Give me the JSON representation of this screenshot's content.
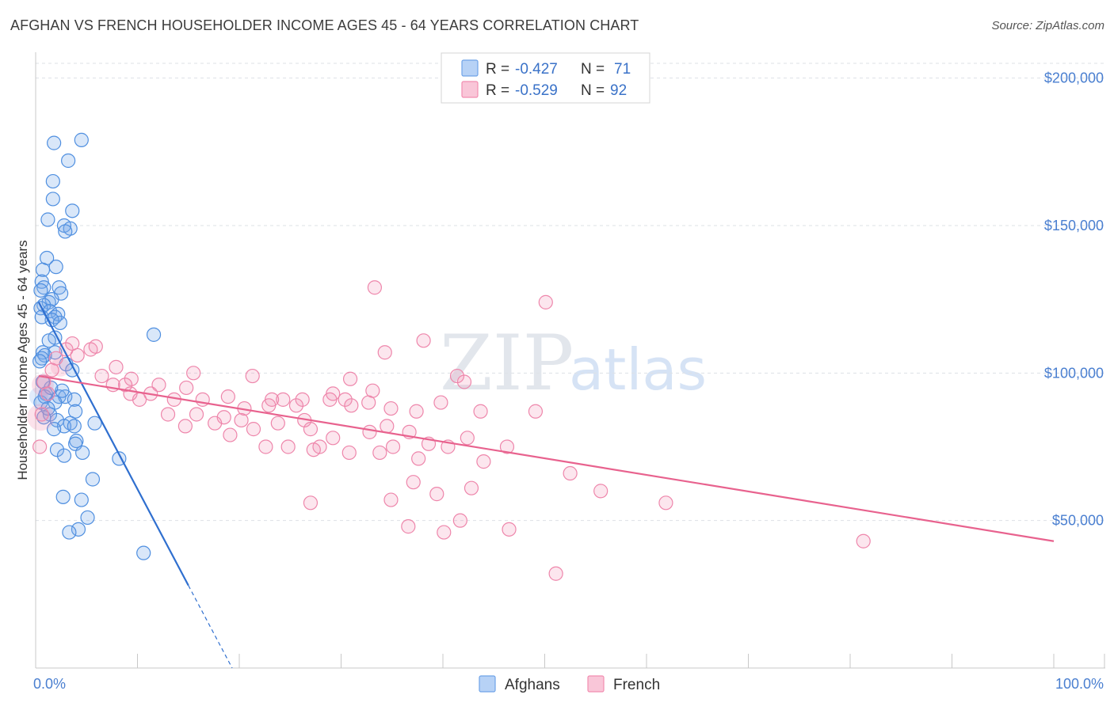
{
  "title": "AFGHAN VS FRENCH HOUSEHOLDER INCOME AGES 45 - 64 YEARS CORRELATION CHART",
  "source": "Source: ZipAtlas.com",
  "watermark": {
    "zip": "ZIP",
    "atlas": "atlas"
  },
  "colors": {
    "afghan": "#6fa3e8",
    "afghan_line": "#2f6fcf",
    "french": "#f28db0",
    "french_line": "#e8628e",
    "axis_text": "#4a7fd0"
  },
  "legend": {
    "rows": [
      {
        "r_label": "R = ",
        "r_value": "-0.427",
        "n_label": "N = ",
        "n_value": "71"
      },
      {
        "r_label": "R = ",
        "r_value": "-0.529",
        "n_label": "N = ",
        "n_value": "92"
      }
    ]
  },
  "chart_data": {
    "type": "scatter",
    "title": "AFGHAN VS FRENCH HOUSEHOLDER INCOME AGES 45 - 64 YEARS CORRELATION CHART",
    "xlabel": "",
    "ylabel": "Householder Income Ages 45 - 64 years",
    "xlim": [
      0,
      100
    ],
    "ylim": [
      0,
      205000
    ],
    "x_tick_labels": [
      "0.0%",
      "100.0%"
    ],
    "y_ticks": [
      50000,
      100000,
      150000,
      200000
    ],
    "y_tick_labels": [
      "$50,000",
      "$100,000",
      "$150,000",
      "$200,000"
    ],
    "series": [
      {
        "name": "Afghans",
        "r": -0.427,
        "n": 71,
        "trend": {
          "x0": 0.3,
          "y0": 124000,
          "x1": 15,
          "y1": 28000,
          "dash_to_x": 19.3,
          "dash_to_y": 0
        },
        "points": [
          [
            4.5,
            179000
          ],
          [
            1.8,
            178000
          ],
          [
            3.2,
            172000
          ],
          [
            1.7,
            165000
          ],
          [
            1.7,
            159000
          ],
          [
            3.6,
            155000
          ],
          [
            1.2,
            152000
          ],
          [
            2.8,
            150000
          ],
          [
            3.4,
            149000
          ],
          [
            2.9,
            148000
          ],
          [
            1.1,
            139000
          ],
          [
            2.0,
            136000
          ],
          [
            0.7,
            135000
          ],
          [
            0.6,
            131000
          ],
          [
            0.8,
            129000
          ],
          [
            2.3,
            129000
          ],
          [
            0.5,
            128000
          ],
          [
            2.5,
            127000
          ],
          [
            1.6,
            125000
          ],
          [
            1.3,
            124000
          ],
          [
            0.8,
            123000
          ],
          [
            0.5,
            122000
          ],
          [
            1.4,
            121000
          ],
          [
            2.2,
            120000
          ],
          [
            0.6,
            119000
          ],
          [
            1.9,
            119000
          ],
          [
            1.6,
            118000
          ],
          [
            2.4,
            117000
          ],
          [
            11.6,
            113000
          ],
          [
            1.9,
            112000
          ],
          [
            1.3,
            111000
          ],
          [
            0.7,
            107000
          ],
          [
            1.9,
            107000
          ],
          [
            0.9,
            106000
          ],
          [
            0.6,
            105000
          ],
          [
            0.4,
            104000
          ],
          [
            3.0,
            103000
          ],
          [
            3.6,
            101000
          ],
          [
            1.0,
            93000
          ],
          [
            2.3,
            92000
          ],
          [
            2.9,
            92000
          ],
          [
            3.8,
            91000
          ],
          [
            0.5,
            90000
          ],
          [
            1.9,
            90000
          ],
          [
            3.9,
            87000
          ],
          [
            1.4,
            86000
          ],
          [
            0.8,
            85000
          ],
          [
            2.1,
            84000
          ],
          [
            3.4,
            83000
          ],
          [
            2.8,
            82000
          ],
          [
            5.8,
            83000
          ],
          [
            3.8,
            82000
          ],
          [
            1.8,
            81000
          ],
          [
            4.0,
            77000
          ],
          [
            3.9,
            76000
          ],
          [
            2.1,
            74000
          ],
          [
            4.6,
            73000
          ],
          [
            2.8,
            72000
          ],
          [
            8.2,
            71000
          ],
          [
            5.6,
            64000
          ],
          [
            2.7,
            58000
          ],
          [
            4.5,
            57000
          ],
          [
            5.1,
            51000
          ],
          [
            4.2,
            47000
          ],
          [
            3.3,
            46000
          ],
          [
            10.6,
            39000
          ],
          [
            0.9,
            92000
          ],
          [
            1.2,
            88000
          ],
          [
            2.6,
            94000
          ],
          [
            1.5,
            95000
          ],
          [
            0.7,
            97000
          ]
        ]
      },
      {
        "name": "French",
        "r": -0.529,
        "n": 92,
        "trend": {
          "x0": 0.3,
          "y0": 99000,
          "x1": 100,
          "y1": 43000
        },
        "points": [
          [
            33.3,
            129000
          ],
          [
            50.1,
            124000
          ],
          [
            38.1,
            111000
          ],
          [
            3.6,
            110000
          ],
          [
            5.9,
            109000
          ],
          [
            5.4,
            108000
          ],
          [
            34.3,
            107000
          ],
          [
            4.1,
            106000
          ],
          [
            2.0,
            105000
          ],
          [
            7.9,
            102000
          ],
          [
            15.5,
            100000
          ],
          [
            21.3,
            99000
          ],
          [
            6.5,
            99000
          ],
          [
            41.4,
            99000
          ],
          [
            9.4,
            98000
          ],
          [
            30.9,
            98000
          ],
          [
            42.1,
            97000
          ],
          [
            8.8,
            96000
          ],
          [
            7.6,
            96000
          ],
          [
            12.1,
            96000
          ],
          [
            14.8,
            95000
          ],
          [
            33.1,
            94000
          ],
          [
            9.3,
            93000
          ],
          [
            11.3,
            93000
          ],
          [
            29.2,
            93000
          ],
          [
            18.9,
            92000
          ],
          [
            10.2,
            91000
          ],
          [
            13.6,
            91000
          ],
          [
            16.4,
            91000
          ],
          [
            23.2,
            91000
          ],
          [
            24.3,
            91000
          ],
          [
            26.2,
            91000
          ],
          [
            28.9,
            91000
          ],
          [
            30.4,
            91000
          ],
          [
            32.7,
            90000
          ],
          [
            39.8,
            90000
          ],
          [
            20.5,
            88000
          ],
          [
            22.9,
            89000
          ],
          [
            25.6,
            89000
          ],
          [
            31.0,
            89000
          ],
          [
            34.9,
            88000
          ],
          [
            37.4,
            87000
          ],
          [
            43.7,
            87000
          ],
          [
            49.1,
            87000
          ],
          [
            13.0,
            86000
          ],
          [
            15.8,
            86000
          ],
          [
            18.5,
            85000
          ],
          [
            20.2,
            84000
          ],
          [
            26.4,
            84000
          ],
          [
            17.6,
            83000
          ],
          [
            23.8,
            83000
          ],
          [
            34.5,
            82000
          ],
          [
            14.7,
            82000
          ],
          [
            21.4,
            81000
          ],
          [
            27.0,
            81000
          ],
          [
            32.8,
            80000
          ],
          [
            36.7,
            80000
          ],
          [
            19.1,
            79000
          ],
          [
            42.4,
            78000
          ],
          [
            29.2,
            78000
          ],
          [
            38.6,
            76000
          ],
          [
            46.3,
            75000
          ],
          [
            22.6,
            75000
          ],
          [
            24.8,
            75000
          ],
          [
            27.9,
            75000
          ],
          [
            35.1,
            75000
          ],
          [
            40.5,
            75000
          ],
          [
            27.3,
            74000
          ],
          [
            33.8,
            73000
          ],
          [
            30.8,
            73000
          ],
          [
            37.6,
            71000
          ],
          [
            44.0,
            70000
          ],
          [
            52.5,
            66000
          ],
          [
            37.1,
            63000
          ],
          [
            42.8,
            61000
          ],
          [
            55.5,
            60000
          ],
          [
            39.4,
            59000
          ],
          [
            34.9,
            57000
          ],
          [
            27.0,
            56000
          ],
          [
            61.9,
            56000
          ],
          [
            41.7,
            50000
          ],
          [
            36.6,
            48000
          ],
          [
            46.5,
            47000
          ],
          [
            40.1,
            46000
          ],
          [
            81.3,
            43000
          ],
          [
            51.1,
            32000
          ],
          [
            0.6,
            86000
          ],
          [
            0.4,
            75000
          ],
          [
            1.2,
            93000
          ],
          [
            0.8,
            97000
          ],
          [
            1.6,
            101000
          ],
          [
            3.0,
            108000
          ]
        ]
      }
    ]
  },
  "bottom_legend": [
    "Afghans",
    "French"
  ]
}
